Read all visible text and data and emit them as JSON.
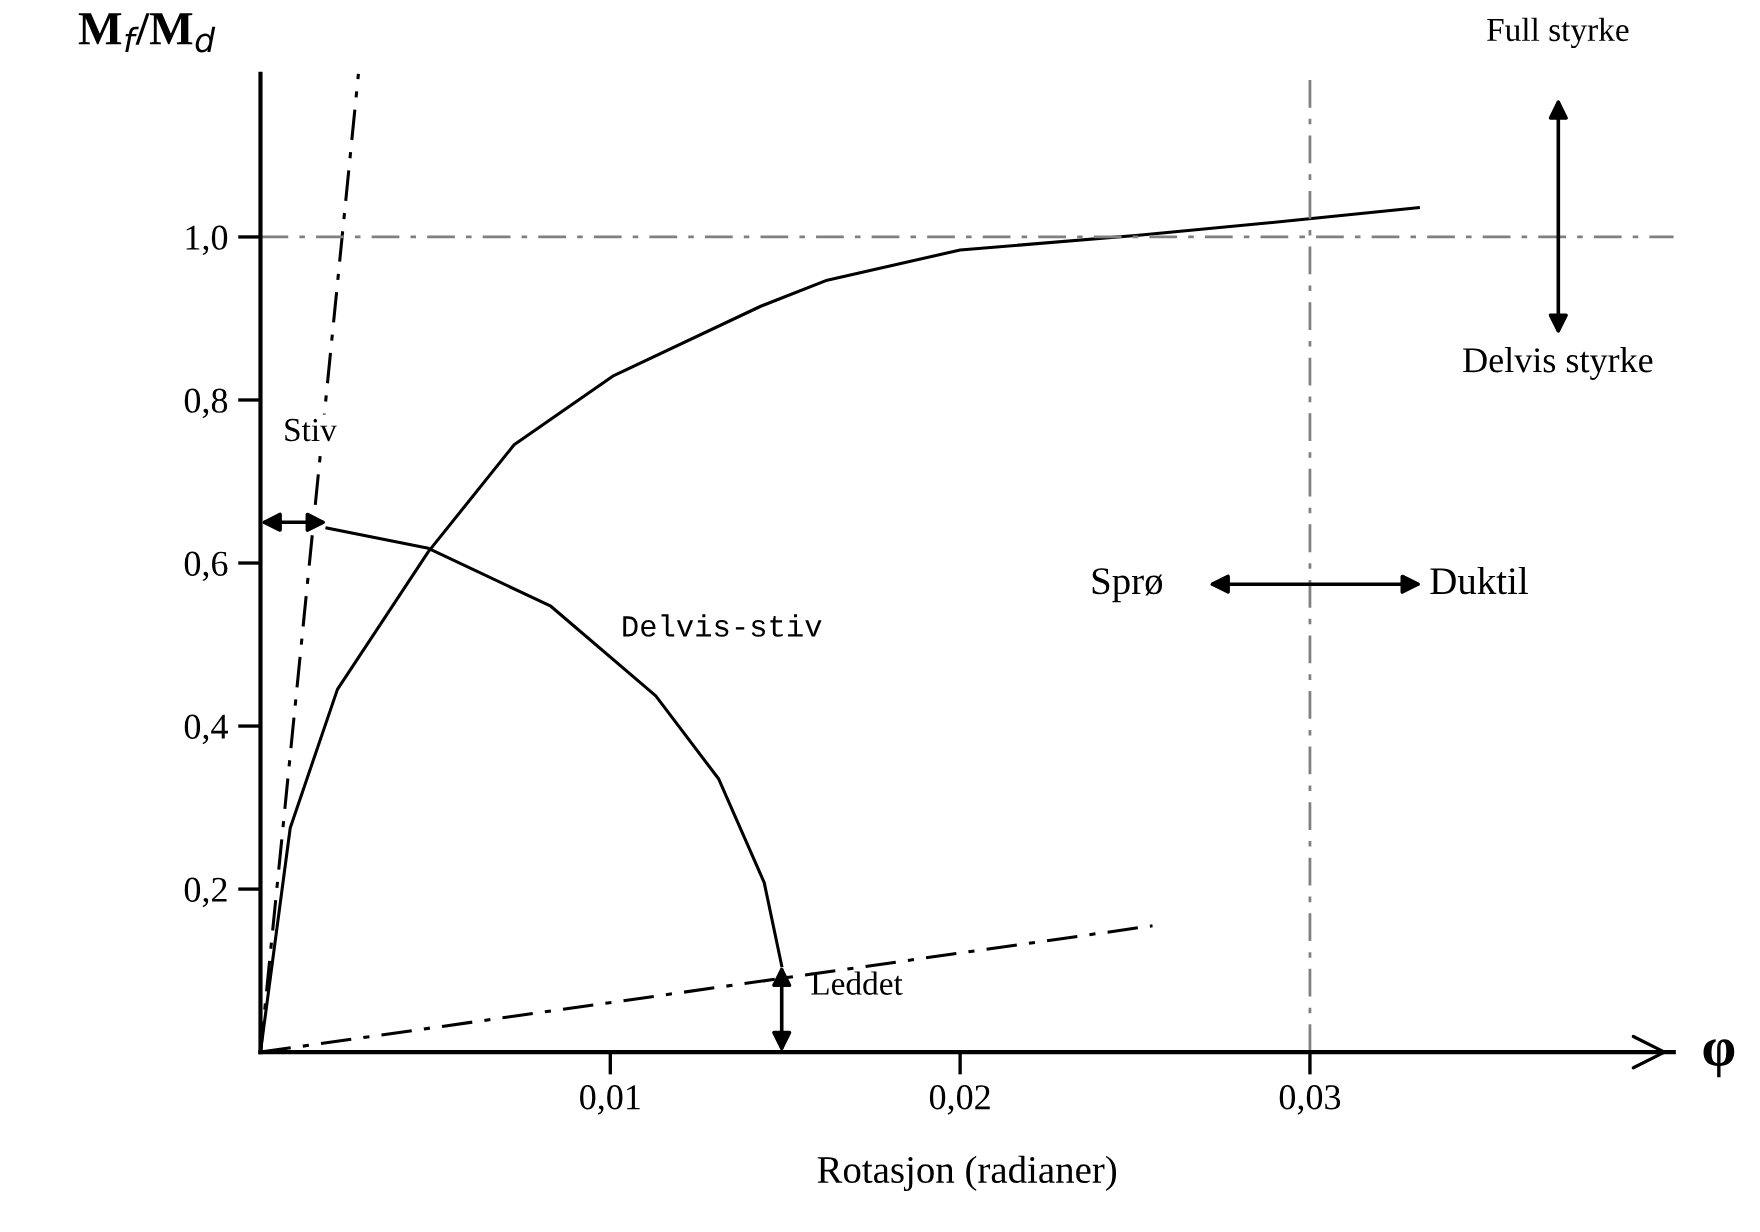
{
  "chart_data": {
    "type": "line",
    "xlabel": "Rotasjon (radianer)",
    "ylabel": "M$_{f}$/M$_{d}$",
    "xlim": [
      0,
      0.0404
    ],
    "ylim": [
      0,
      1.2
    ],
    "xticks": [
      {
        "value": 0.01,
        "label": "0,01"
      },
      {
        "value": 0.02,
        "label": "0,02"
      },
      {
        "value": 0.03,
        "label": "0,03"
      }
    ],
    "yticks": [
      {
        "value": 0.2,
        "label": "0,2"
      },
      {
        "value": 0.4,
        "label": "0,4"
      },
      {
        "value": 0.6,
        "label": "0,6"
      },
      {
        "value": 0.8,
        "label": "0,8"
      },
      {
        "value": 1.0,
        "label": "1,0"
      }
    ],
    "series": [
      {
        "color": "#000000",
        "line_style": "dashed",
        "x": [
          0,
          0.0028
        ],
        "values": [
          0,
          1.2
        ]
      },
      {
        "color": "#000000",
        "line_style": "dashed",
        "x": [
          0,
          0.0255
        ],
        "values": [
          0,
          0.155
        ]
      },
      {
        "color": "#000000",
        "line_style": "solid",
        "x": [
          0,
          0.00085,
          0.0022,
          0.0048,
          0.00725,
          0.0101,
          0.0143,
          0.0162,
          0.02,
          0.0251,
          0.0297,
          0.0331
        ],
        "values": [
          0,
          0.275,
          0.445,
          0.614,
          0.745,
          0.83,
          0.915,
          0.947,
          0.984,
          1.002,
          1.021,
          1.036
        ]
      },
      {
        "color": "#000000",
        "line_style": "solid",
        "x": [
          0.0019,
          0.0048,
          0.0083,
          0.0113,
          0.0131,
          0.0144,
          0.0149
        ],
        "values": [
          0.643,
          0.618,
          0.547,
          0.437,
          0.335,
          0.208,
          0.106
        ]
      }
    ],
    "ref_lines": [
      {
        "axis": "y",
        "value": 1.0,
        "color": "#808080",
        "line_style": "dashed"
      },
      {
        "axis": "x",
        "value": 0.03,
        "color": "#808080",
        "line_style": "dashed"
      }
    ],
    "annotations": [
      "Stiv",
      "Delvis-stiv",
      "Leddet",
      "Sprø",
      "Duktil",
      "Full styrke",
      "Delvis styrke",
      "φ"
    ],
    "grid": false,
    "legend": false,
    "marker": "none"
  }
}
